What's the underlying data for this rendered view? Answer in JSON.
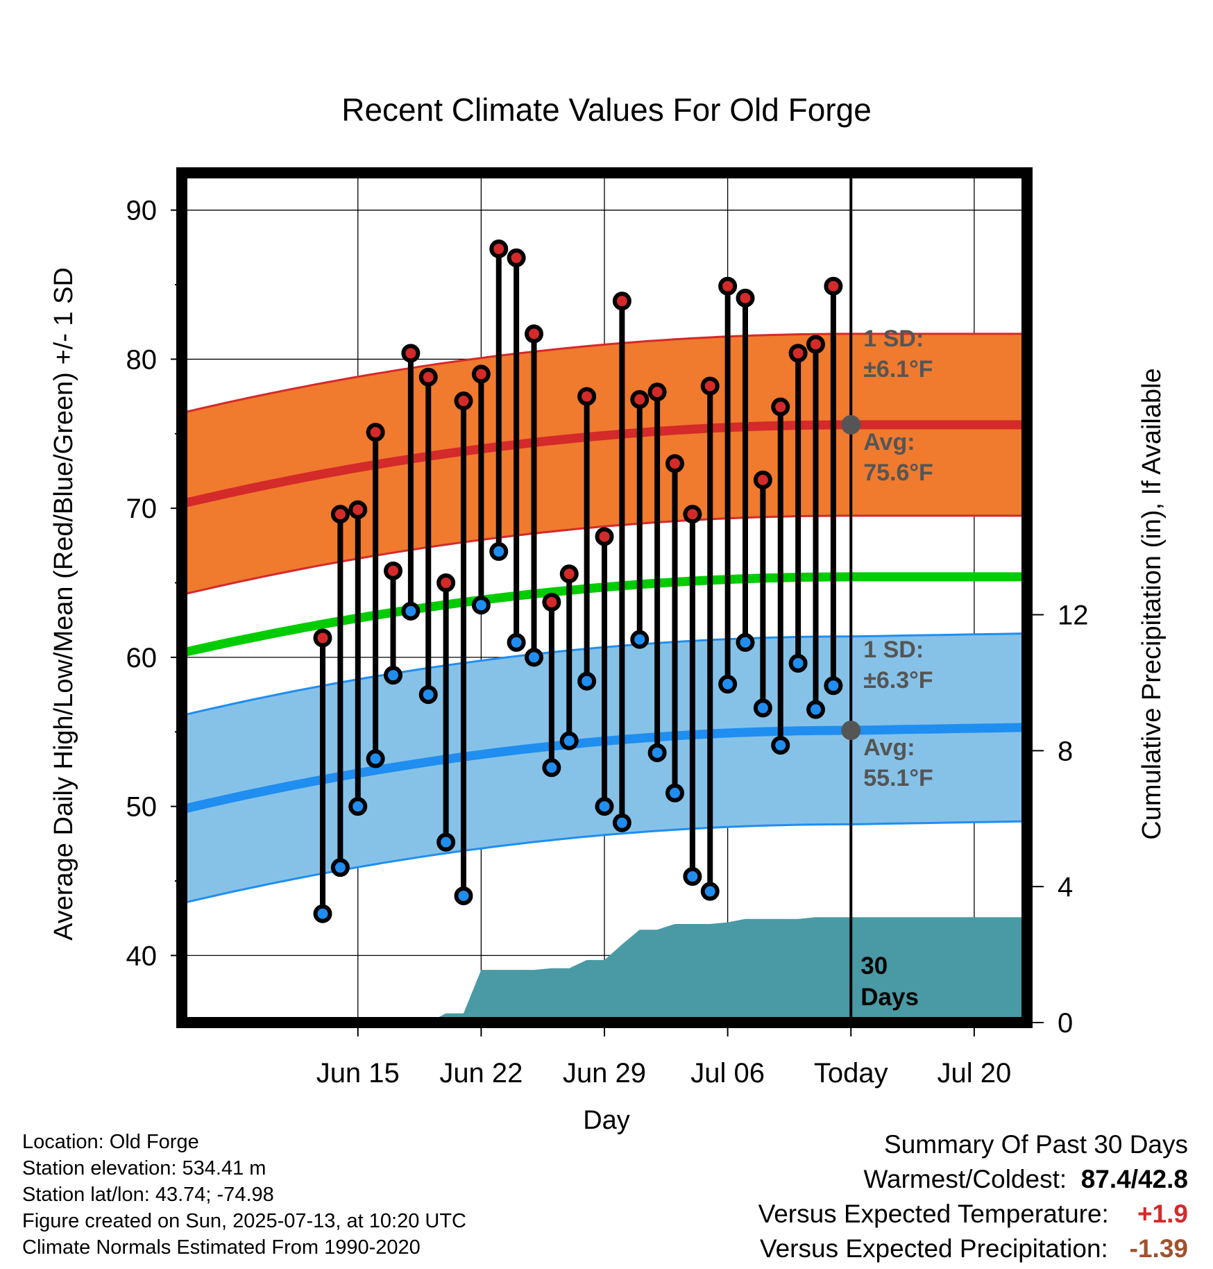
{
  "chart_data": {
    "type": "line",
    "title": "Recent Climate Values For Old Forge",
    "xlabel": "Day",
    "ylabel_left": "Average Daily High/Low/Mean (Red/Blue/Green) +/- 1 SD",
    "ylabel_right": "Cumulative Precipitation (in), If Available",
    "ylim_left": [
      35.5,
      92.5
    ],
    "yticks_left": [
      40,
      50,
      60,
      70,
      80,
      90
    ],
    "ylim_right": [
      0,
      25
    ],
    "yticks_right": [
      0,
      4,
      8,
      12
    ],
    "x_range_days": [
      -38,
      10
    ],
    "x_ticks": [
      {
        "day": -28,
        "label": "Jun 15"
      },
      {
        "day": -21,
        "label": "Jun 22"
      },
      {
        "day": -14,
        "label": "Jun 29"
      },
      {
        "day": -7,
        "label": "Jul 06"
      },
      {
        "day": 0,
        "label": "Today"
      },
      {
        "day": 7,
        "label": "Jul 20"
      }
    ],
    "daily_highs": [
      61.3,
      69.6,
      69.9,
      75.1,
      65.8,
      80.4,
      78.8,
      65.0,
      77.2,
      79.0,
      87.4,
      86.8,
      81.7,
      63.7,
      65.6,
      77.5,
      68.1,
      83.9,
      77.3,
      77.8,
      73.0,
      69.6,
      78.2,
      84.9,
      84.1,
      71.9,
      76.8,
      80.4,
      81.0,
      84.9
    ],
    "daily_lows": [
      42.8,
      45.9,
      50.0,
      53.2,
      58.8,
      63.1,
      57.5,
      47.6,
      44.0,
      63.5,
      67.1,
      61.0,
      60.0,
      52.6,
      54.4,
      58.4,
      50.0,
      48.9,
      61.2,
      53.6,
      50.9,
      45.3,
      44.3,
      58.2,
      61.0,
      56.6,
      54.1,
      59.6,
      56.5,
      58.1
    ],
    "normal_high": {
      "start": 70.3,
      "today": 75.6,
      "end": 75.6,
      "sd": 6.1
    },
    "normal_low": {
      "start": 49.8,
      "today": 55.1,
      "end": 55.3,
      "sd": 6.3
    },
    "normal_mean": {
      "start": 60.3,
      "today": 65.4,
      "end": 65.4
    },
    "cumulative_precip": [
      0,
      0,
      0,
      0,
      0,
      0,
      0,
      0.27,
      0.27,
      1.55,
      1.55,
      1.55,
      1.55,
      1.6,
      1.6,
      1.84,
      1.84,
      2.3,
      2.73,
      2.73,
      2.9,
      2.9,
      2.9,
      2.95,
      3.05,
      3.05,
      3.05,
      3.05,
      3.1,
      3.1,
      3.1
    ],
    "high_band_label": {
      "sd": "1 SD:",
      "sd_value": "±6.1°F",
      "avg": "Avg:",
      "avg_value": "75.6°F"
    },
    "low_band_label": {
      "sd": "1 SD:",
      "sd_value": "±6.3°F",
      "avg": "Avg:",
      "avg_value": "55.1°F"
    },
    "period_label": [
      "30",
      "Days"
    ],
    "colors": {
      "high_band": "#f07a2e",
      "high_line": "#d42a2a",
      "low_band": "#86c2e8",
      "low_line": "#1f8ef0",
      "mean_line": "#00cc00",
      "precip": "#4a9aa5",
      "high_marker": "#d42a2a",
      "low_marker": "#1f8ef0",
      "band_text": "#555555"
    }
  },
  "info": {
    "location": "Location: Old Forge",
    "elevation": "Station elevation: 534.41 m",
    "latlon": "Station lat/lon: 43.74; -74.98",
    "created": "Figure created on Sun, 2025-07-13, at 10:20 UTC",
    "normals": "Climate Normals Estimated From 1990-2020"
  },
  "summary": {
    "title": "Summary Of Past 30 Days",
    "warmest_label": "Warmest/Coldest:",
    "warmest_value": "87.4/42.8",
    "temp_label": "Versus Expected Temperature:",
    "temp_value": "+1.9",
    "temp_color": "#d42a2a",
    "precip_label": "Versus Expected Precipitation:",
    "precip_value": "-1.39",
    "precip_color": "#a0522d"
  }
}
